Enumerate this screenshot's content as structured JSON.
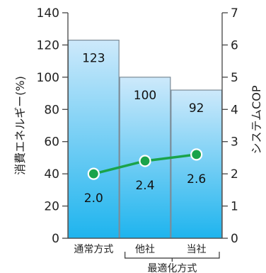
{
  "chart_data": {
    "type": "bar",
    "categories": [
      "通常方式",
      "他社",
      "当社"
    ],
    "group_label": "最適化方式",
    "series": [
      {
        "name": "",
        "axis": "left",
        "type": "bar",
        "values": [
          123,
          100,
          92
        ],
        "labels": [
          "123",
          "100",
          "92"
        ]
      },
      {
        "name": "",
        "axis": "right",
        "type": "line",
        "values": [
          2.0,
          2.4,
          2.6
        ],
        "labels": [
          "2.0",
          "2.4",
          "2.6"
        ]
      }
    ],
    "ylabel": "消費エネルギー(%)",
    "y2label": "システムCOP",
    "ylim": [
      0,
      140
    ],
    "y2lim": [
      0,
      7
    ],
    "yticks": [
      "0",
      "20",
      "40",
      "60",
      "80",
      "100",
      "120",
      "140"
    ],
    "y2ticks": [
      "0",
      "1",
      "2",
      "3",
      "4",
      "5",
      "6",
      "7"
    ],
    "grid": false,
    "colors": {
      "bar_top": "#cde9fb",
      "bar_bottom": "#1eb4ee",
      "bar_edge": "#7a8a96",
      "line": "#1aa34a",
      "marker_fill": "#1aa34a",
      "marker_edge": "#ffffff"
    }
  }
}
